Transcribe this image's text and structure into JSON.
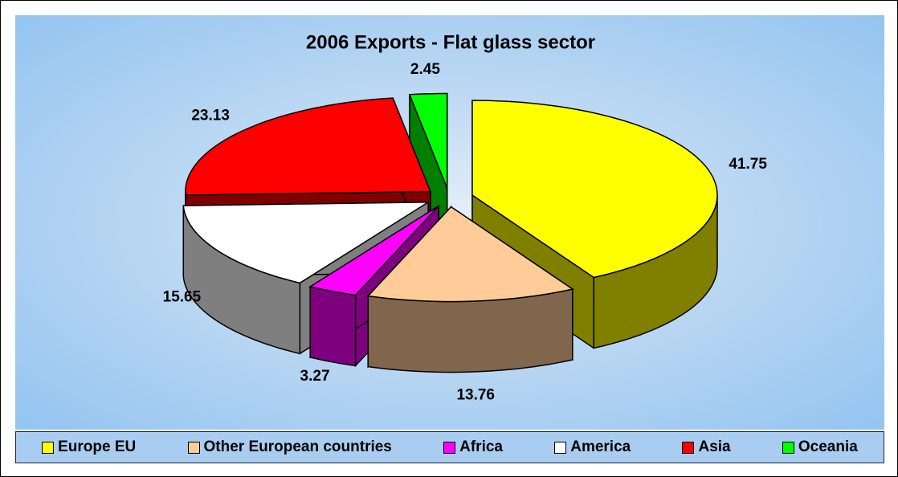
{
  "chart_data": {
    "type": "pie3d",
    "title": "2006 Exports - Flat glass sector",
    "categories": [
      "Europe EU",
      "Other European countries",
      "Africa",
      "America",
      "Asia",
      "Oceania"
    ],
    "values": [
      41.75,
      13.76,
      3.27,
      15.65,
      23.13,
      2.45
    ],
    "colors": [
      "#ffff00",
      "#ffcc99",
      "#ff00ff",
      "#ffffff",
      "#ff0000",
      "#00ff00"
    ],
    "legend": "bottom"
  }
}
